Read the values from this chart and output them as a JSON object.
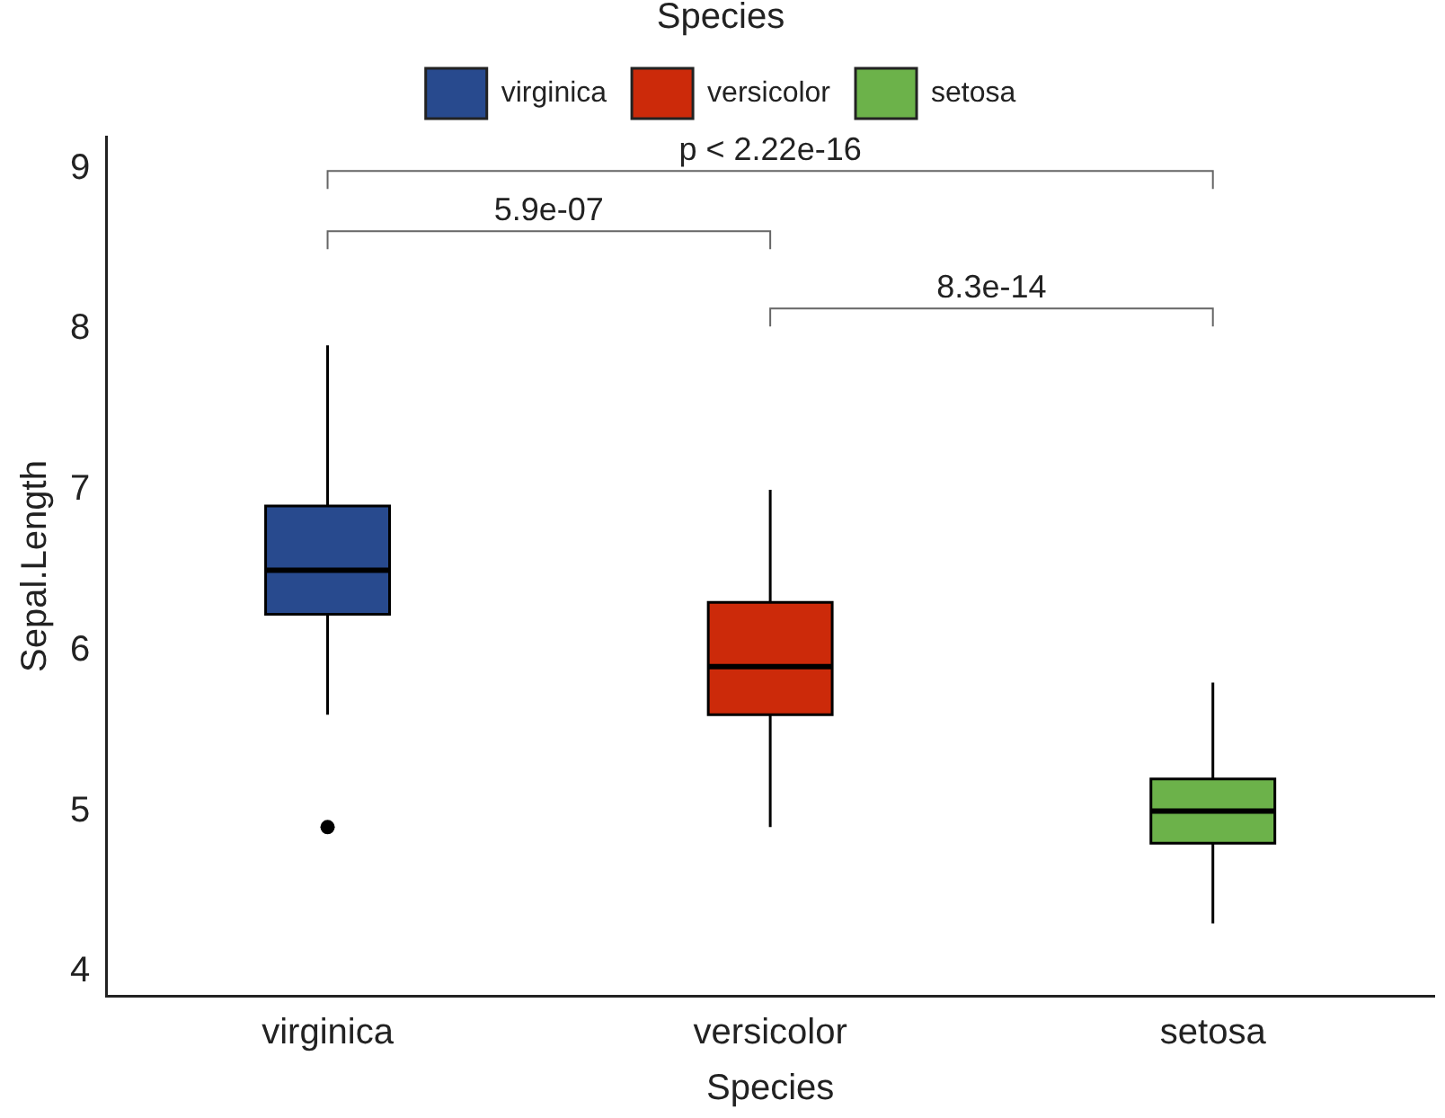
{
  "chart_data": {
    "type": "box",
    "xlabel": "Species",
    "ylabel": "Sepal.Length",
    "legend_title": "Species",
    "legend": "top",
    "grid": false,
    "categories": [
      "virginica",
      "versicolor",
      "setosa"
    ],
    "series": [
      {
        "name": "virginica",
        "color": "#284a8e",
        "boxes": [
          {
            "low": 5.6,
            "q1": 6.225,
            "median": 6.5,
            "q3": 6.9,
            "high": 7.9,
            "outliers": [
              4.9
            ]
          },
          null,
          null
        ]
      },
      {
        "name": "versicolor",
        "color": "#cc2a0a",
        "boxes": [
          null,
          {
            "low": 4.9,
            "q1": 5.6,
            "median": 5.9,
            "q3": 6.3,
            "high": 7.0
          },
          null
        ]
      },
      {
        "name": "setosa",
        "color": "#6cb24a",
        "boxes": [
          null,
          null,
          {
            "low": 4.3,
            "q1": 4.8,
            "median": 5.0,
            "q3": 5.2,
            "high": 5.8
          }
        ]
      }
    ],
    "ylim": [
      3.85,
      9.2
    ],
    "yticks": [
      4,
      5,
      6,
      7,
      8,
      9
    ],
    "annotations": [
      "p < 2.22e-16",
      "5.9e-07",
      "8.3e-14"
    ]
  }
}
